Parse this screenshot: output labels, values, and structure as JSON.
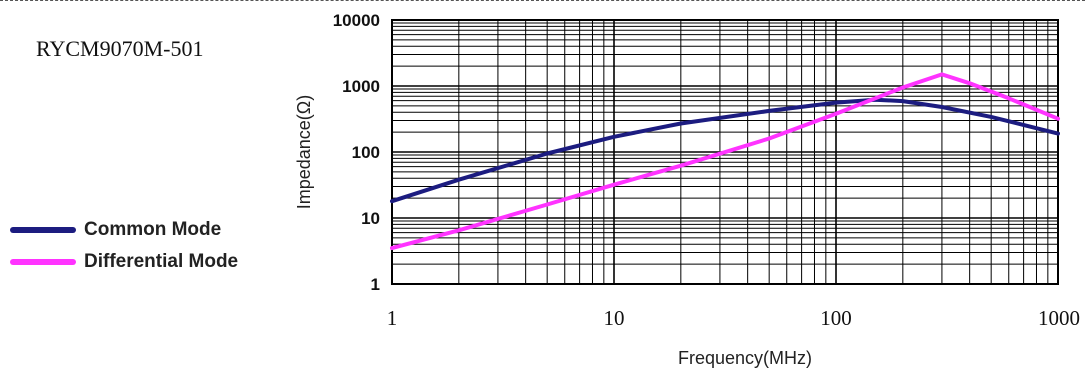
{
  "part_number": "RYCM9070M-501",
  "colors": {
    "common_mode": "#1c1c80",
    "differential_mode": "#ff33ff"
  },
  "chart_data": {
    "type": "line",
    "title": "",
    "xlabel": "Frequency(MHz)",
    "ylabel": "Impedance(Ω)",
    "x_scale": "log",
    "y_scale": "log",
    "xlim": [
      1,
      1000
    ],
    "ylim": [
      1,
      10000
    ],
    "x_ticks": [
      "1",
      "10",
      "100",
      "1000"
    ],
    "y_ticks": [
      "10000",
      "1000",
      "100",
      "10",
      "1"
    ],
    "grid": true,
    "legend_position": "left",
    "series": [
      {
        "name": "Common Mode",
        "x": [
          1,
          2,
          5,
          10,
          20,
          50,
          100,
          150,
          200,
          300,
          500,
          1000
        ],
        "y": [
          18,
          38,
          95,
          170,
          270,
          420,
          560,
          620,
          590,
          480,
          340,
          190
        ]
      },
      {
        "name": "Differential Mode",
        "x": [
          1,
          2,
          5,
          10,
          20,
          50,
          100,
          200,
          300,
          400,
          600,
          1000
        ],
        "y": [
          3.5,
          6.5,
          16,
          32,
          62,
          160,
          380,
          950,
          1500,
          1100,
          650,
          320
        ]
      }
    ]
  }
}
